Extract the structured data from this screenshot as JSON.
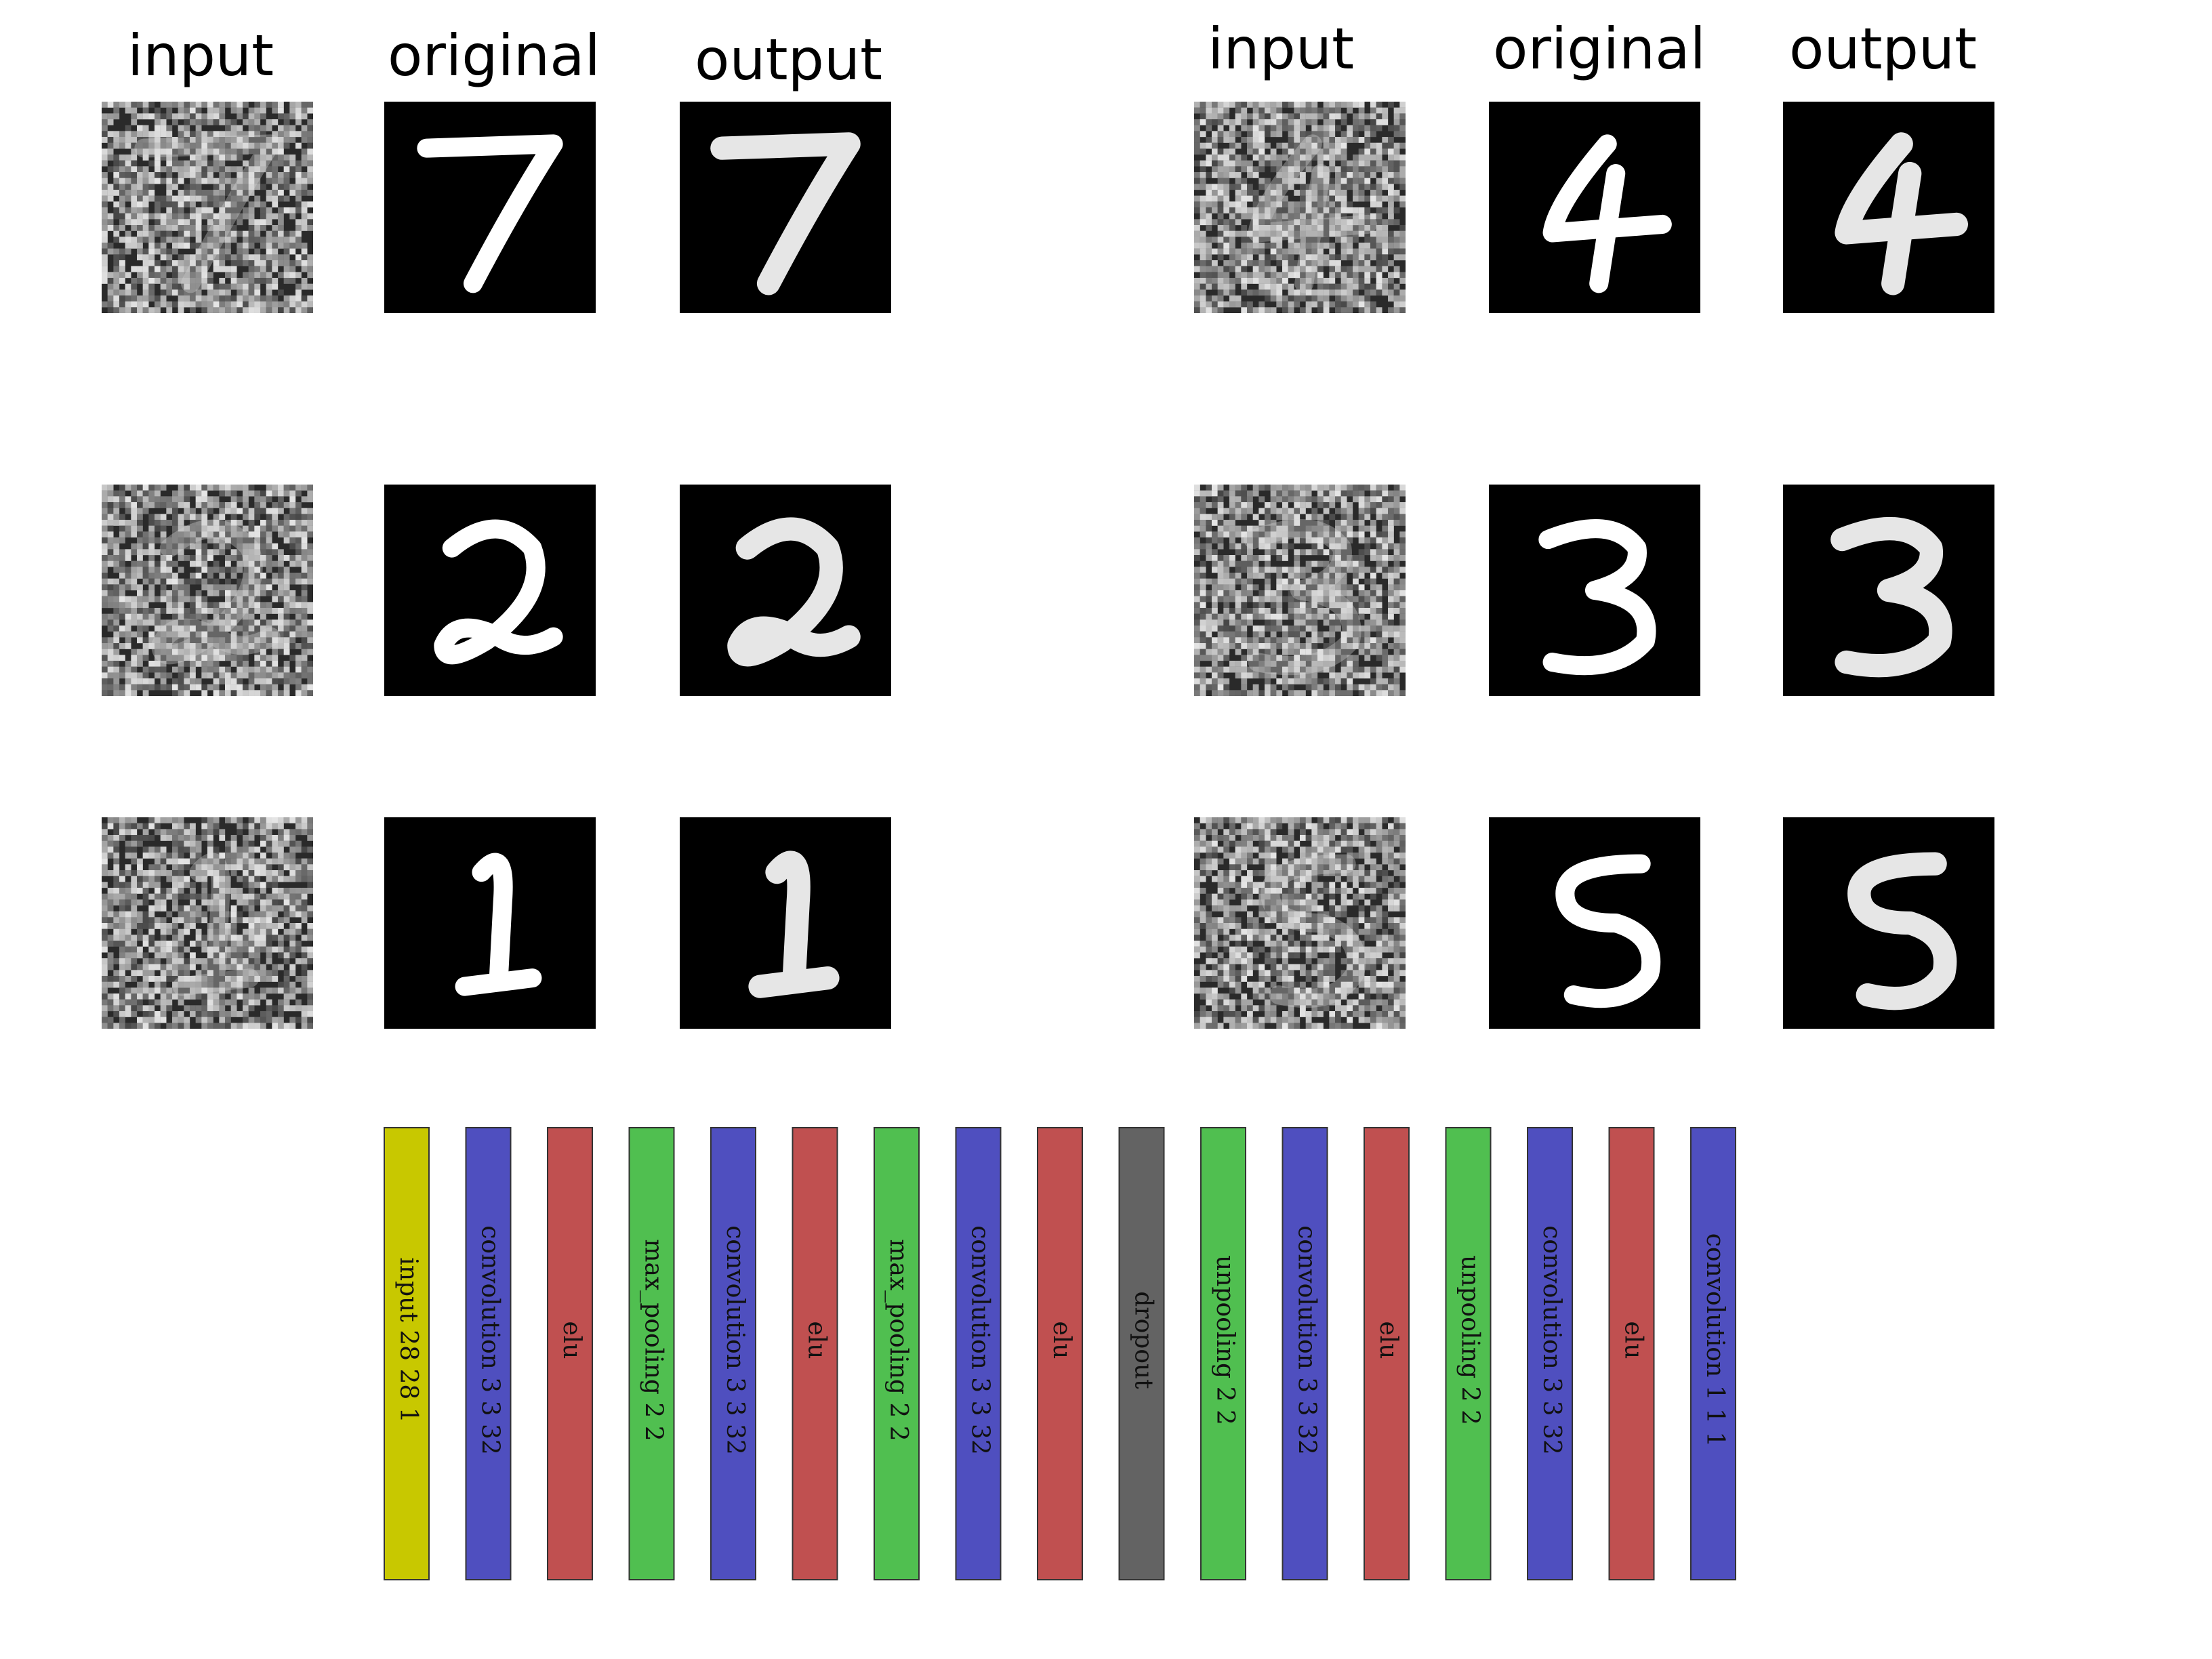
{
  "column_headers": [
    "input",
    "original",
    "output",
    "input",
    "original",
    "output"
  ],
  "panels": [
    {
      "digit": "7"
    },
    {
      "digit": "4"
    },
    {
      "digit": "2"
    },
    {
      "digit": "3"
    },
    {
      "digit": "1"
    },
    {
      "digit": "5"
    }
  ],
  "tile_colors": {
    "background": "#000000",
    "digit": "#ffffff",
    "noise_dark": "#2a2a2a",
    "noise_light": "#d8d8d8"
  },
  "layers": [
    {
      "label": "input 28 28 1",
      "color": "#c8c800"
    },
    {
      "label": "convolution 3 3 32",
      "color": "#4f4fbf"
    },
    {
      "label": "elu",
      "color": "#c05050"
    },
    {
      "label": "max_pooling 2 2",
      "color": "#50bf50"
    },
    {
      "label": "convolution 3 3 32",
      "color": "#4f4fbf"
    },
    {
      "label": "elu",
      "color": "#c05050"
    },
    {
      "label": "max_pooling 2 2",
      "color": "#50bf50"
    },
    {
      "label": "convolution 3 3 32",
      "color": "#4f4fbf"
    },
    {
      "label": "elu",
      "color": "#c05050"
    },
    {
      "label": "dropout",
      "color": "#636363"
    },
    {
      "label": "unpooling 2 2",
      "color": "#50bf50"
    },
    {
      "label": "convolution 3 3 32",
      "color": "#4f4fbf"
    },
    {
      "label": "elu",
      "color": "#c05050"
    },
    {
      "label": "unpooling 2 2",
      "color": "#50bf50"
    },
    {
      "label": "convolution 3 3 32",
      "color": "#4f4fbf"
    },
    {
      "label": "elu",
      "color": "#c05050"
    },
    {
      "label": "convolution 1 1 1",
      "color": "#4f4fbf"
    }
  ]
}
